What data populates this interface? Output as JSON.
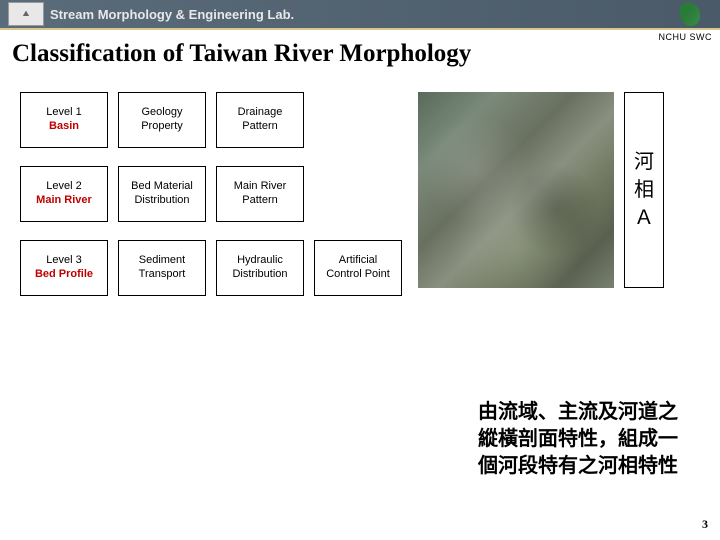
{
  "header": {
    "lab": "Stream Morphology & Engineering Lab."
  },
  "affiliation": "NCHU SWC",
  "title": "Classification of Taiwan River Morphology",
  "grid": {
    "r1": {
      "level_top": "Level 1",
      "level_bot": "Basin",
      "c2_top": "Geology",
      "c2_bot": "Property",
      "c3_top": "Drainage",
      "c3_bot": "Pattern"
    },
    "r2": {
      "level_top": "Level 2",
      "level_bot": "Main River",
      "c2_top": "Bed Material",
      "c2_bot": "Distribution",
      "c3_top": "Main River",
      "c3_bot": "Pattern"
    },
    "r3": {
      "level_top": "Level 3",
      "level_bot": "Bed Profile",
      "c2_top": "Sediment",
      "c2_bot": "Transport",
      "c3_top": "Hydraulic",
      "c3_bot": "Distribution",
      "c4_top": "Artificial",
      "c4_bot": "Control Point"
    }
  },
  "side_box": {
    "l1": "河",
    "l2": "相",
    "l3": "Ａ"
  },
  "bottom": {
    "l1": "由流域、主流及河道之",
    "l2": "縱橫剖面特性，組成一",
    "l3": "個河段特有之河相特性"
  },
  "page": "3",
  "colors": {
    "header_bg": "#4a5a68",
    "underline": "#d8c890",
    "level_red": "#c00000"
  }
}
